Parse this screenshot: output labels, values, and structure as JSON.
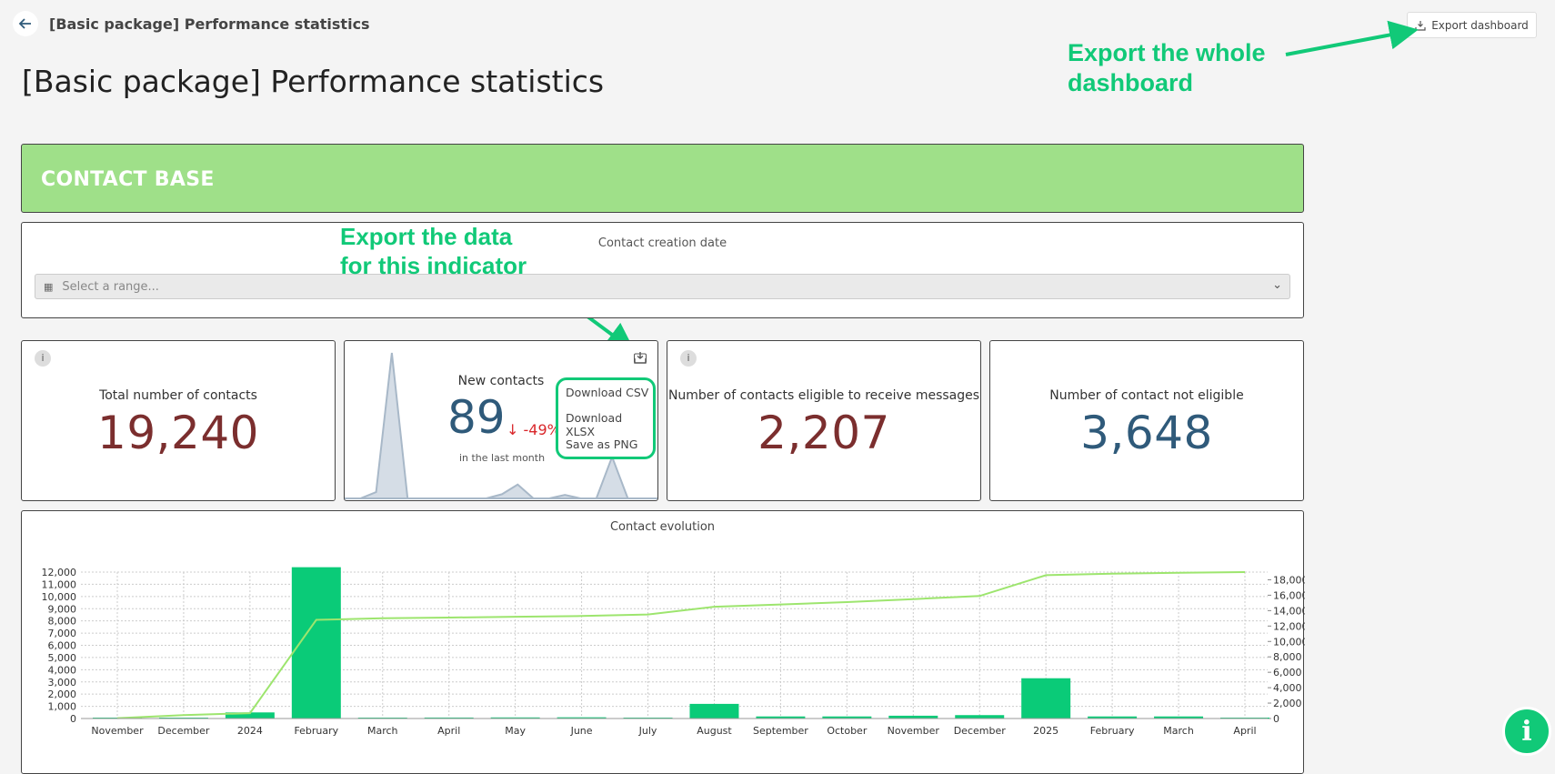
{
  "topbar": {
    "title": "[Basic package] Performance statistics",
    "export_label": "Export dashboard",
    "back_icon": "arrow-left-icon",
    "export_icon": "download-icon"
  },
  "page": {
    "title": "[Basic package] Performance statistics"
  },
  "annotations": {
    "export_whole_line1": "Export the whole",
    "export_whole_line2": "dashboard",
    "export_data_line1": "Export the data",
    "export_data_line2": "for this indicator"
  },
  "section": {
    "title": "CONTACT BASE"
  },
  "filter": {
    "label": "Contact creation date",
    "placeholder": "Select a range..."
  },
  "kpis": {
    "total": {
      "title": "Total number of contacts",
      "value": "19,240",
      "info": "i"
    },
    "new": {
      "title": "New contacts",
      "value": "89",
      "delta": "-49%",
      "subtitle": "in the last month"
    },
    "eligible": {
      "title": "Number of contacts eligible to receive messages",
      "value": "2,207",
      "info": "i"
    },
    "not_eligible": {
      "title": "Number of contact not eligible",
      "value": "3,648"
    }
  },
  "export_menu": {
    "items": [
      "Download CSV",
      "Download XLSX",
      "Save as PNG"
    ]
  },
  "help": {
    "icon": "help-info-icon",
    "glyph": "i"
  },
  "colors": {
    "accent": "#11c978",
    "banner": "#9fe089",
    "total_value": "#7b2e2e",
    "new_value": "#2f5a7a",
    "delta": "#d9262a",
    "bar": "#0acb78",
    "line": "#9de56e"
  },
  "chart_data": {
    "type": "bar",
    "title": "Contact evolution",
    "categories": [
      "November",
      "December",
      "2024",
      "February",
      "March",
      "April",
      "May",
      "June",
      "July",
      "August",
      "September",
      "October",
      "November",
      "December",
      "2025",
      "February",
      "March",
      "April"
    ],
    "series": [
      {
        "values": [
          10,
          20,
          500,
          12400,
          70,
          80,
          90,
          100,
          60,
          1200,
          170,
          170,
          230,
          280,
          3300,
          170,
          170,
          60
        ],
        "axis": "left",
        "kind": "bar"
      },
      {
        "values": [
          50,
          450,
          700,
          12800,
          13000,
          13100,
          13200,
          13300,
          13500,
          14500,
          14800,
          15100,
          15500,
          15900,
          18600,
          18800,
          18900,
          19000
        ],
        "axis": "right",
        "kind": "line"
      }
    ],
    "left_axis": {
      "ylim": [
        0,
        12000
      ],
      "ticks": [
        "0",
        "1,000",
        "2,000",
        "3,000",
        "4,000",
        "5,000",
        "6,000",
        "7,000",
        "8,000",
        "9,000",
        "10,000",
        "11,000",
        "12,000"
      ]
    },
    "right_axis": {
      "ylim": [
        0,
        19000
      ],
      "ticks": [
        "0",
        "2,000",
        "4,000",
        "6,000",
        "8,000",
        "10,000",
        "12,000",
        "14,000",
        "16,000",
        "18,000"
      ]
    },
    "grid": true
  },
  "sparkline": {
    "values": [
      0,
      0,
      18,
      420,
      0,
      0,
      0,
      0,
      0,
      0,
      12,
      40,
      0,
      0,
      10,
      0,
      0,
      120,
      0,
      0,
      0
    ]
  }
}
